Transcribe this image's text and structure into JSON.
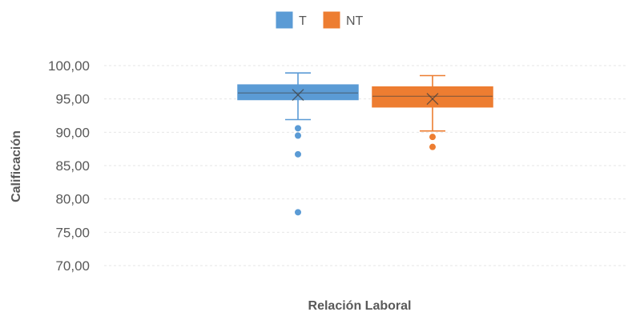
{
  "chart_data": {
    "type": "box",
    "xlabel": "Relación Laboral",
    "ylabel": "Calificación",
    "ylim": [
      70,
      100
    ],
    "y_ticks": [
      70,
      75,
      80,
      85,
      90,
      95,
      100
    ],
    "y_tick_labels": [
      "70,00",
      "75,00",
      "80,00",
      "85,00",
      "90,00",
      "95,00",
      "100,00"
    ],
    "grid": true,
    "legend_position": "top",
    "series": [
      {
        "name": "T",
        "color": "#5B9BD5",
        "whisker_low": 91.9,
        "q1": 94.9,
        "median": 95.9,
        "mean": 95.6,
        "q3": 97.1,
        "whisker_high": 98.9,
        "outliers": [
          90.6,
          89.5,
          86.7,
          78.0
        ]
      },
      {
        "name": "NT",
        "color": "#ED7D31",
        "whisker_low": 90.2,
        "q1": 93.8,
        "median": 95.4,
        "mean": 95.0,
        "q3": 96.8,
        "whisker_high": 98.5,
        "outliers": [
          89.3,
          87.8
        ]
      }
    ]
  }
}
